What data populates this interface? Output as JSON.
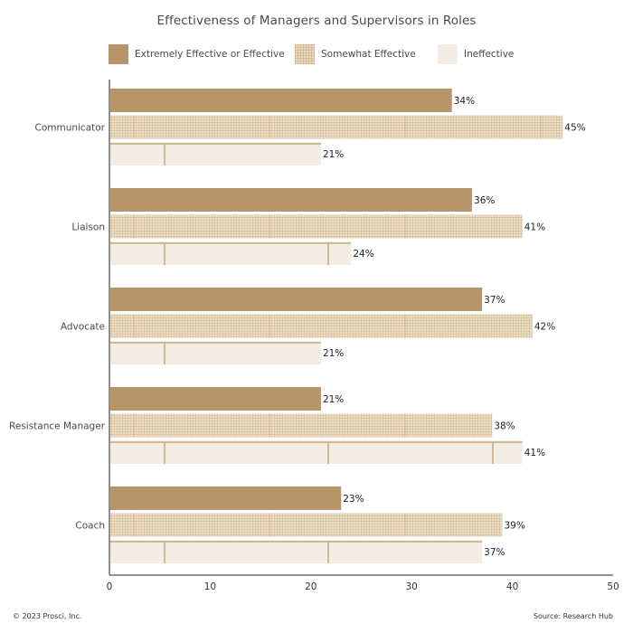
{
  "chart_data": {
    "type": "bar",
    "orientation": "horizontal",
    "title": "Effectiveness of Managers and Supervisors in Roles",
    "categories": [
      "Communicator",
      "Liaison",
      "Advocate",
      "Resistance Manager",
      "Coach"
    ],
    "series": [
      {
        "name": "Extremely Effective or Effective",
        "color": "#b8946a",
        "values": [
          34,
          36,
          37,
          21,
          23
        ],
        "labels": [
          "34%",
          "36%",
          "37%",
          "21%",
          "23%"
        ]
      },
      {
        "name": "Somewhat Effective",
        "color": "#e9d9bf",
        "values": [
          45,
          41,
          42,
          38,
          39
        ],
        "labels": [
          "45%",
          "41%",
          "42%",
          "38%",
          "39%"
        ]
      },
      {
        "name": "Ineffective",
        "color": "#f4ede3",
        "values": [
          21,
          24,
          21,
          41,
          37
        ],
        "labels": [
          "21%",
          "24%",
          "21%",
          "41%",
          "37%"
        ]
      }
    ],
    "xlabel": "",
    "ylabel": "",
    "xlim": [
      0,
      50
    ],
    "xticks": [
      0,
      10,
      20,
      30,
      40,
      50
    ],
    "xtick_labels": [
      "0",
      "10",
      "20",
      "30",
      "40",
      "50"
    ],
    "grid": false,
    "legend_position": "top"
  },
  "footer": {
    "copyright": "© 2023 Prosci, Inc.",
    "source": "Source: Research Hub"
  }
}
